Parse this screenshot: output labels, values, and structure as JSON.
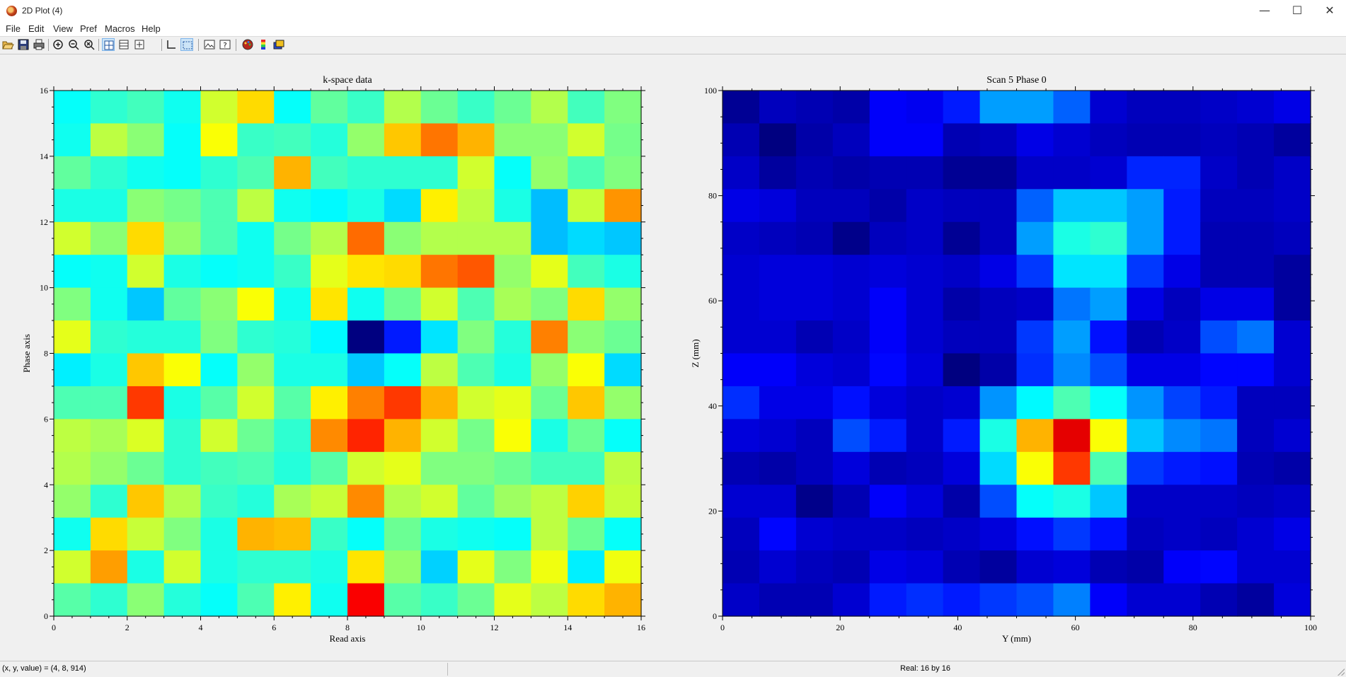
{
  "window": {
    "title": "2D Plot (4)",
    "minimize_glyph": "—",
    "maximize_glyph": "☐",
    "close_glyph": "✕"
  },
  "menu": [
    {
      "label": "File"
    },
    {
      "label": "Edit"
    },
    {
      "label": "View"
    },
    {
      "label": "Pref"
    },
    {
      "label": "Macros"
    },
    {
      "label": "Help"
    }
  ],
  "toolbar": [
    {
      "name": "open-icon",
      "active": false
    },
    {
      "name": "save-icon",
      "active": false
    },
    {
      "name": "print-icon",
      "active": false
    },
    {
      "name": "zoom-in-icon",
      "active": false
    },
    {
      "name": "zoom-out-icon",
      "active": false
    },
    {
      "name": "zoom-reset-icon",
      "active": false
    },
    {
      "name": "layout-split-icon",
      "active": true
    },
    {
      "name": "layout-columns-icon",
      "active": false
    },
    {
      "name": "add-plot-icon",
      "active": false
    },
    {
      "name": "axes-icon",
      "active": false
    },
    {
      "name": "select-region-icon",
      "active": true
    },
    {
      "name": "image-icon",
      "active": false
    },
    {
      "name": "help-cursor-icon",
      "active": false
    },
    {
      "name": "color-palette-icon",
      "active": false
    },
    {
      "name": "colorbar-icon",
      "active": false
    },
    {
      "name": "layers-icon",
      "active": false
    }
  ],
  "chart_data": [
    {
      "type": "heatmap",
      "title": "k-space data",
      "xlabel": "Read axis",
      "ylabel": "Phase axis",
      "xlim": [
        0,
        16
      ],
      "ylim": [
        0,
        16
      ],
      "xticks": [
        0,
        2,
        4,
        6,
        8,
        10,
        12,
        14,
        16
      ],
      "yticks": [
        0,
        2,
        4,
        6,
        8,
        10,
        12,
        14,
        16
      ],
      "colormap": "jet",
      "value_range": [
        0,
        1
      ],
      "grid_order": "rows listed top (y=15..16) to bottom (y=0..1), columns x=0..15",
      "values": [
        [
          0.38,
          0.42,
          0.44,
          0.39,
          0.58,
          0.66,
          0.38,
          0.47,
          0.43,
          0.55,
          0.48,
          0.43,
          0.48,
          0.55,
          0.44,
          0.5
        ],
        [
          0.39,
          0.56,
          0.51,
          0.38,
          0.62,
          0.43,
          0.44,
          0.41,
          0.52,
          0.68,
          0.76,
          0.7,
          0.51,
          0.51,
          0.58,
          0.49
        ],
        [
          0.47,
          0.42,
          0.39,
          0.38,
          0.42,
          0.45,
          0.7,
          0.44,
          0.42,
          0.42,
          0.42,
          0.58,
          0.38,
          0.52,
          0.45,
          0.5
        ],
        [
          0.4,
          0.4,
          0.51,
          0.49,
          0.45,
          0.56,
          0.39,
          0.37,
          0.4,
          0.34,
          0.64,
          0.56,
          0.4,
          0.31,
          0.57,
          0.73
        ],
        [
          0.58,
          0.51,
          0.66,
          0.52,
          0.45,
          0.39,
          0.49,
          0.55,
          0.77,
          0.51,
          0.55,
          0.55,
          0.55,
          0.31,
          0.34,
          0.32
        ],
        [
          0.38,
          0.39,
          0.58,
          0.4,
          0.38,
          0.39,
          0.43,
          0.6,
          0.65,
          0.66,
          0.76,
          0.79,
          0.52,
          0.6,
          0.44,
          0.4
        ],
        [
          0.5,
          0.39,
          0.32,
          0.47,
          0.51,
          0.62,
          0.39,
          0.65,
          0.39,
          0.48,
          0.58,
          0.45,
          0.54,
          0.5,
          0.66,
          0.52
        ],
        [
          0.6,
          0.42,
          0.41,
          0.41,
          0.5,
          0.42,
          0.41,
          0.37,
          0.0,
          0.15,
          0.35,
          0.5,
          0.41,
          0.75,
          0.51,
          0.48
        ],
        [
          0.36,
          0.4,
          0.68,
          0.62,
          0.38,
          0.52,
          0.4,
          0.4,
          0.32,
          0.38,
          0.56,
          0.45,
          0.4,
          0.52,
          0.62,
          0.34
        ],
        [
          0.45,
          0.45,
          0.82,
          0.4,
          0.46,
          0.58,
          0.46,
          0.64,
          0.75,
          0.82,
          0.7,
          0.58,
          0.6,
          0.48,
          0.68,
          0.52
        ],
        [
          0.56,
          0.54,
          0.59,
          0.42,
          0.58,
          0.48,
          0.42,
          0.74,
          0.84,
          0.7,
          0.58,
          0.49,
          0.62,
          0.4,
          0.48,
          0.38
        ],
        [
          0.55,
          0.52,
          0.48,
          0.42,
          0.44,
          0.45,
          0.41,
          0.46,
          0.58,
          0.6,
          0.5,
          0.5,
          0.48,
          0.44,
          0.44,
          0.56
        ],
        [
          0.52,
          0.42,
          0.68,
          0.55,
          0.43,
          0.41,
          0.54,
          0.57,
          0.74,
          0.55,
          0.58,
          0.47,
          0.53,
          0.56,
          0.67,
          0.57
        ],
        [
          0.39,
          0.66,
          0.57,
          0.5,
          0.4,
          0.7,
          0.69,
          0.43,
          0.38,
          0.48,
          0.4,
          0.39,
          0.38,
          0.56,
          0.48,
          0.38
        ],
        [
          0.58,
          0.72,
          0.4,
          0.58,
          0.4,
          0.42,
          0.42,
          0.4,
          0.65,
          0.52,
          0.33,
          0.6,
          0.5,
          0.61,
          0.36,
          0.61
        ],
        [
          0.46,
          0.42,
          0.51,
          0.41,
          0.38,
          0.45,
          0.64,
          0.39,
          0.88,
          0.46,
          0.43,
          0.48,
          0.6,
          0.56,
          0.66,
          0.7
        ]
      ]
    },
    {
      "type": "heatmap",
      "title": "Scan 5 Phase 0",
      "xlabel": "Y (mm)",
      "ylabel": "Z (mm)",
      "xlim": [
        0,
        100
      ],
      "ylim": [
        0,
        100
      ],
      "xticks": [
        0,
        20,
        40,
        60,
        80,
        100
      ],
      "yticks": [
        0,
        20,
        40,
        60,
        80,
        100
      ],
      "colormap": "jet",
      "value_range": [
        0,
        1
      ],
      "grid_order": "rows listed top (z near 100) to bottom (z near 0), 16 columns across y=0..100",
      "values": [
        [
          0.02,
          0.06,
          0.05,
          0.04,
          0.12,
          0.11,
          0.15,
          0.28,
          0.28,
          0.22,
          0.08,
          0.06,
          0.06,
          0.07,
          0.08,
          0.1
        ],
        [
          0.05,
          0.0,
          0.04,
          0.06,
          0.12,
          0.12,
          0.05,
          0.06,
          0.1,
          0.08,
          0.06,
          0.05,
          0.05,
          0.06,
          0.05,
          0.03
        ],
        [
          0.07,
          0.03,
          0.05,
          0.04,
          0.05,
          0.05,
          0.02,
          0.02,
          0.07,
          0.07,
          0.08,
          0.16,
          0.16,
          0.07,
          0.05,
          0.07
        ],
        [
          0.1,
          0.09,
          0.06,
          0.06,
          0.04,
          0.07,
          0.06,
          0.06,
          0.22,
          0.32,
          0.32,
          0.28,
          0.15,
          0.06,
          0.06,
          0.07
        ],
        [
          0.07,
          0.06,
          0.05,
          0.01,
          0.06,
          0.07,
          0.02,
          0.06,
          0.28,
          0.4,
          0.42,
          0.28,
          0.15,
          0.05,
          0.05,
          0.06
        ],
        [
          0.08,
          0.09,
          0.09,
          0.08,
          0.09,
          0.08,
          0.07,
          0.1,
          0.18,
          0.35,
          0.35,
          0.18,
          0.1,
          0.05,
          0.05,
          0.03
        ],
        [
          0.08,
          0.09,
          0.09,
          0.08,
          0.12,
          0.08,
          0.04,
          0.06,
          0.07,
          0.24,
          0.28,
          0.1,
          0.06,
          0.1,
          0.1,
          0.03
        ],
        [
          0.08,
          0.08,
          0.05,
          0.07,
          0.12,
          0.08,
          0.06,
          0.06,
          0.18,
          0.28,
          0.14,
          0.05,
          0.07,
          0.2,
          0.24,
          0.08
        ],
        [
          0.12,
          0.12,
          0.09,
          0.08,
          0.13,
          0.09,
          0.0,
          0.04,
          0.17,
          0.26,
          0.2,
          0.1,
          0.1,
          0.13,
          0.13,
          0.08
        ],
        [
          0.17,
          0.1,
          0.1,
          0.14,
          0.09,
          0.07,
          0.08,
          0.27,
          0.37,
          0.45,
          0.38,
          0.27,
          0.19,
          0.15,
          0.06,
          0.06
        ],
        [
          0.09,
          0.08,
          0.06,
          0.2,
          0.15,
          0.07,
          0.15,
          0.4,
          0.7,
          0.9,
          0.62,
          0.32,
          0.26,
          0.24,
          0.06,
          0.08
        ],
        [
          0.05,
          0.04,
          0.06,
          0.09,
          0.05,
          0.06,
          0.09,
          0.34,
          0.62,
          0.82,
          0.45,
          0.18,
          0.15,
          0.14,
          0.05,
          0.04
        ],
        [
          0.08,
          0.08,
          0.01,
          0.05,
          0.12,
          0.09,
          0.04,
          0.2,
          0.38,
          0.4,
          0.32,
          0.07,
          0.07,
          0.07,
          0.06,
          0.07
        ],
        [
          0.06,
          0.13,
          0.08,
          0.07,
          0.07,
          0.06,
          0.07,
          0.09,
          0.14,
          0.18,
          0.14,
          0.06,
          0.07,
          0.06,
          0.08,
          0.1
        ],
        [
          0.05,
          0.08,
          0.06,
          0.05,
          0.1,
          0.09,
          0.05,
          0.03,
          0.08,
          0.09,
          0.05,
          0.04,
          0.12,
          0.13,
          0.08,
          0.08
        ],
        [
          0.07,
          0.05,
          0.05,
          0.08,
          0.15,
          0.17,
          0.15,
          0.18,
          0.2,
          0.25,
          0.12,
          0.08,
          0.08,
          0.05,
          0.03,
          0.09
        ]
      ]
    }
  ],
  "status": {
    "left": "(x, y, value) = (4, 8, 914)",
    "right": "Real: 16 by 16"
  }
}
